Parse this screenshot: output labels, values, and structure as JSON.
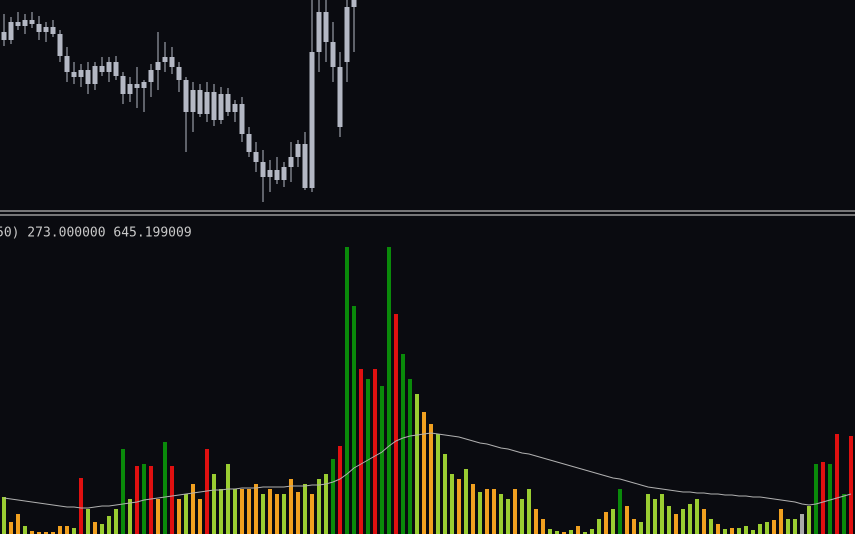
{
  "chart_data": [
    {
      "type": "candlestick",
      "color": "#b4b8c4",
      "ylim": [
        0,
        212
      ],
      "open": [
        180,
        172,
        190,
        186,
        192,
        188,
        180,
        185,
        178,
        156,
        140,
        135,
        142,
        128,
        146,
        140,
        150,
        136,
        118,
        128,
        124,
        130,
        142,
        150,
        155,
        145,
        132,
        100,
        122,
        98,
        120,
        92,
        118,
        100,
        108,
        78,
        60,
        50,
        35,
        42,
        32,
        45,
        55,
        68,
        24,
        160,
        200,
        170,
        145,
        150,
        205
      ],
      "high": [
        198,
        195,
        200,
        198,
        200,
        196,
        190,
        192,
        182,
        165,
        150,
        148,
        150,
        150,
        155,
        155,
        156,
        140,
        135,
        145,
        132,
        148,
        180,
        170,
        165,
        150,
        135,
        130,
        128,
        130,
        128,
        125,
        124,
        112,
        115,
        85,
        70,
        62,
        52,
        55,
        50,
        70,
        72,
        80,
        212,
        212,
        212,
        190,
        160,
        212,
        212
      ],
      "low": [
        166,
        168,
        182,
        178,
        184,
        172,
        170,
        175,
        150,
        130,
        128,
        125,
        118,
        122,
        136,
        130,
        132,
        108,
        110,
        104,
        100,
        115,
        122,
        140,
        138,
        120,
        60,
        80,
        95,
        90,
        86,
        88,
        96,
        90,
        70,
        55,
        40,
        10,
        20,
        28,
        25,
        30,
        45,
        22,
        20,
        140,
        150,
        130,
        75,
        130,
        160
      ],
      "close": [
        172,
        190,
        186,
        192,
        188,
        180,
        185,
        178,
        156,
        140,
        135,
        142,
        128,
        146,
        140,
        150,
        136,
        118,
        128,
        124,
        130,
        142,
        150,
        155,
        145,
        132,
        100,
        122,
        98,
        120,
        92,
        118,
        100,
        108,
        78,
        60,
        50,
        35,
        42,
        32,
        45,
        55,
        68,
        24,
        160,
        200,
        170,
        145,
        85,
        205,
        212
      ]
    },
    {
      "type": "bar",
      "label": "50) 273.000000 645.199009",
      "ylim": [
        0,
        318
      ],
      "line_color": "#b0b0b0",
      "values": [
        37,
        12,
        20,
        8,
        3,
        2,
        2,
        2,
        8,
        8,
        6,
        56,
        25,
        12,
        10,
        18,
        25,
        85,
        35,
        68,
        70,
        68,
        35,
        92,
        68,
        35,
        40,
        50,
        35,
        85,
        60,
        45,
        70,
        45,
        45,
        45,
        50,
        40,
        45,
        40,
        40,
        55,
        42,
        50,
        40,
        55,
        60,
        75,
        88,
        287,
        228,
        165,
        155,
        165,
        148,
        287,
        220,
        180,
        155,
        140,
        122,
        110,
        100,
        80,
        60,
        55,
        65,
        50,
        42,
        45,
        45,
        40,
        35,
        45,
        35,
        45,
        25,
        15,
        5,
        3,
        2,
        4,
        8,
        2,
        5,
        15,
        22,
        25,
        45,
        28,
        15,
        12,
        40,
        35,
        40,
        28,
        20,
        25,
        30,
        35,
        25,
        15,
        10,
        5,
        6,
        6,
        8,
        4,
        10,
        12,
        14,
        25,
        15,
        15,
        20,
        28,
        70,
        72,
        70,
        100,
        40,
        98
      ],
      "colors": [
        "#9acd32",
        "#f0a020",
        "#f0a020",
        "#9acd32",
        "#f0a020",
        "#f0a020",
        "#f0a020",
        "#f0a020",
        "#f0a020",
        "#f0a020",
        "#9acd32",
        "#e01010",
        "#9acd32",
        "#f0a020",
        "#9acd32",
        "#9acd32",
        "#9acd32",
        "#0a8a0a",
        "#9acd32",
        "#e01010",
        "#0a8a0a",
        "#e01010",
        "#f0a020",
        "#0a8a0a",
        "#e01010",
        "#f0a020",
        "#9acd32",
        "#f0a020",
        "#f0a020",
        "#e01010",
        "#9acd32",
        "#9acd32",
        "#9acd32",
        "#9acd32",
        "#f0a020",
        "#f0a020",
        "#f0a020",
        "#9acd32",
        "#f0a020",
        "#f0a020",
        "#9acd32",
        "#f0a020",
        "#f0a020",
        "#9acd32",
        "#f0a020",
        "#9acd32",
        "#9acd32",
        "#0a8a0a",
        "#e01010",
        "#0a8a0a",
        "#0a8a0a",
        "#e01010",
        "#0a8a0a",
        "#e01010",
        "#0a8a0a",
        "#0a8a0a",
        "#e01010",
        "#0a8a0a",
        "#0a8a0a",
        "#9acd32",
        "#f0a020",
        "#f0a020",
        "#9acd32",
        "#9acd32",
        "#9acd32",
        "#f0a020",
        "#9acd32",
        "#f0a020",
        "#9acd32",
        "#f0a020",
        "#f0a020",
        "#9acd32",
        "#9acd32",
        "#f0a020",
        "#9acd32",
        "#9acd32",
        "#f0a020",
        "#f0a020",
        "#9acd32",
        "#9acd32",
        "#f0a020",
        "#9acd32",
        "#f0a020",
        "#9acd32",
        "#9acd32",
        "#9acd32",
        "#f0a020",
        "#9acd32",
        "#0a8a0a",
        "#f0a020",
        "#f0a020",
        "#9acd32",
        "#9acd32",
        "#9acd32",
        "#9acd32",
        "#9acd32",
        "#f0a020",
        "#9acd32",
        "#9acd32",
        "#9acd32",
        "#f0a020",
        "#9acd32",
        "#f0a020",
        "#9acd32",
        "#f0a020",
        "#9acd32",
        "#9acd32",
        "#9acd32",
        "#9acd32",
        "#9acd32",
        "#f0a020",
        "#f0a020",
        "#9acd32",
        "#9acd32",
        "#aaaaaa",
        "#9acd32",
        "#0a8a0a",
        "#e01010",
        "#0a8a0a",
        "#e01010",
        "#0a8a0a",
        "#e01010"
      ],
      "line_values": [
        36,
        35,
        34,
        33,
        32,
        31,
        30,
        29,
        28,
        27,
        27,
        26,
        26,
        27,
        28,
        28,
        29,
        30,
        31,
        32,
        34,
        35,
        36,
        37,
        38,
        39,
        40,
        41,
        42,
        43,
        44,
        44,
        45,
        45,
        46,
        46,
        46,
        47,
        47,
        47,
        47,
        48,
        48,
        48,
        49,
        49,
        50,
        52,
        55,
        60,
        66,
        70,
        74,
        78,
        82,
        88,
        93,
        96,
        98,
        99,
        100,
        101,
        100,
        99,
        98,
        97,
        95,
        93,
        91,
        90,
        88,
        86,
        85,
        83,
        81,
        80,
        78,
        76,
        74,
        72,
        70,
        68,
        66,
        64,
        62,
        60,
        58,
        56,
        55,
        53,
        51,
        49,
        47,
        46,
        45,
        44,
        43,
        42,
        42,
        41,
        41,
        40,
        40,
        39,
        39,
        38,
        38,
        37,
        37,
        36,
        35,
        34,
        33,
        32,
        30,
        29,
        30,
        32,
        34,
        36,
        38,
        40
      ]
    }
  ]
}
